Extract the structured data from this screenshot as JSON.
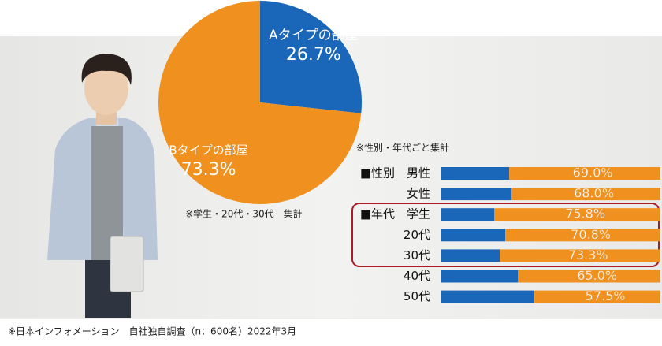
{
  "chart_data": [
    {
      "type": "pie",
      "categories": [
        "Aタイプの部屋",
        "Bタイプの部屋"
      ],
      "values": [
        26.7,
        73.3
      ],
      "value_labels": [
        "26.7%",
        "73.3%"
      ],
      "colors": [
        "#1a66b8",
        "#f0911f"
      ],
      "note": "※学生・20代・30代　集計"
    },
    {
      "type": "stacked-bar-horizontal",
      "note": "※性別・年代ごと集計",
      "categories": [
        "■性別　男性",
        "女性",
        "■年代　学生",
        "20代",
        "30代",
        "40代",
        "50代"
      ],
      "xlim": [
        0,
        100
      ],
      "series": [
        {
          "color": "#1a66b8",
          "values": [
            31.0,
            32.0,
            24.2,
            29.2,
            26.7,
            35.0,
            42.5
          ]
        },
        {
          "color": "#f0911f",
          "values": [
            69.0,
            68.0,
            75.8,
            70.8,
            73.3,
            65.0,
            57.5
          ],
          "value_labels": [
            "69.0%",
            "68.0%",
            "75.8%",
            "70.8%",
            "73.3%",
            "65.0%",
            "57.5%"
          ]
        }
      ]
    }
  ],
  "footer": "※日本インフォメーション　自社独自調査（n：600名）2022年3月"
}
